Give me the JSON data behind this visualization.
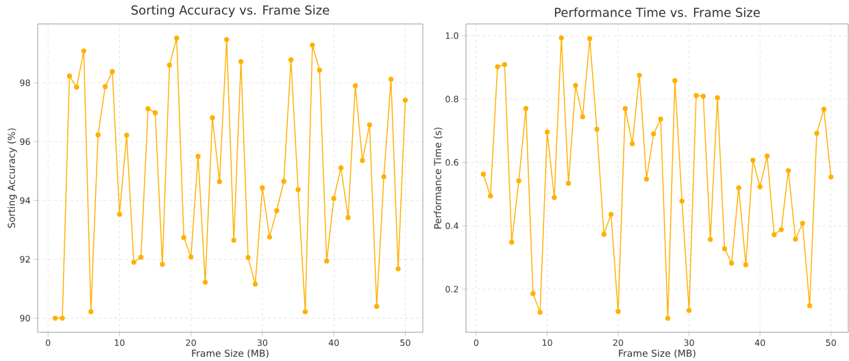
{
  "chart_data": [
    {
      "type": "line",
      "title": "Sorting Accuracy vs. Frame Size",
      "xlabel": "Frame Size (MB)",
      "ylabel": "Sorting Accuracy (%)",
      "color": "#ffb000",
      "marker": "circle",
      "grid": true,
      "x": [
        1,
        2,
        3,
        4,
        5,
        6,
        7,
        8,
        9,
        10,
        11,
        12,
        13,
        14,
        15,
        16,
        17,
        18,
        19,
        20,
        21,
        22,
        23,
        24,
        25,
        26,
        27,
        28,
        29,
        30,
        31,
        32,
        33,
        34,
        35,
        36,
        37,
        38,
        39,
        40,
        41,
        42,
        43,
        44,
        45,
        46,
        47,
        48,
        49,
        50
      ],
      "values": [
        90.0,
        90.0,
        98.23,
        97.85,
        99.08,
        90.22,
        96.23,
        97.87,
        98.38,
        93.53,
        96.22,
        91.9,
        92.07,
        97.12,
        96.98,
        91.83,
        98.6,
        99.52,
        92.74,
        92.08,
        95.5,
        91.22,
        96.81,
        94.64,
        99.47,
        92.65,
        98.72,
        92.06,
        91.16,
        94.43,
        92.76,
        93.65,
        94.65,
        98.78,
        94.37,
        90.22,
        99.28,
        98.43,
        91.94,
        94.07,
        95.11,
        93.42,
        97.9,
        95.36,
        96.57,
        90.4,
        94.81,
        98.12,
        91.68,
        97.41
      ],
      "xlim": [
        -1.45,
        52.45
      ],
      "ylim": [
        89.52,
        100.0
      ],
      "xticks": [
        0,
        10,
        20,
        30,
        40,
        50
      ],
      "yticks": [
        90,
        92,
        94,
        96,
        98
      ]
    },
    {
      "type": "line",
      "title": "Performance Time vs. Frame Size",
      "xlabel": "Frame Size (MB)",
      "ylabel": "Performance Time (s)",
      "color": "#ffb000",
      "marker": "circle",
      "grid": true,
      "x": [
        1,
        2,
        3,
        4,
        5,
        6,
        7,
        8,
        9,
        10,
        11,
        12,
        13,
        14,
        15,
        16,
        17,
        18,
        19,
        20,
        21,
        22,
        23,
        24,
        25,
        26,
        27,
        28,
        29,
        30,
        31,
        32,
        33,
        34,
        35,
        36,
        37,
        38,
        39,
        40,
        41,
        42,
        43,
        44,
        45,
        46,
        47,
        48,
        49,
        50
      ],
      "values": [
        0.563,
        0.494,
        0.902,
        0.909,
        0.348,
        0.542,
        0.77,
        0.186,
        0.127,
        0.696,
        0.489,
        0.993,
        0.534,
        0.843,
        0.744,
        0.991,
        0.705,
        0.373,
        0.436,
        0.13,
        0.77,
        0.659,
        0.875,
        0.547,
        0.69,
        0.737,
        0.108,
        0.858,
        0.478,
        0.133,
        0.811,
        0.809,
        0.357,
        0.804,
        0.328,
        0.282,
        0.52,
        0.277,
        0.607,
        0.523,
        0.62,
        0.372,
        0.388,
        0.574,
        0.358,
        0.408,
        0.148,
        0.692,
        0.768,
        0.554
      ],
      "xlim": [
        -1.45,
        52.45
      ],
      "ylim": [
        0.064,
        1.037
      ],
      "xticks": [
        0,
        10,
        20,
        30,
        40,
        50
      ],
      "yticks": [
        0.2,
        0.4,
        0.6,
        0.8,
        {
          "value": 1.0,
          "label": "1.0"
        }
      ]
    }
  ]
}
